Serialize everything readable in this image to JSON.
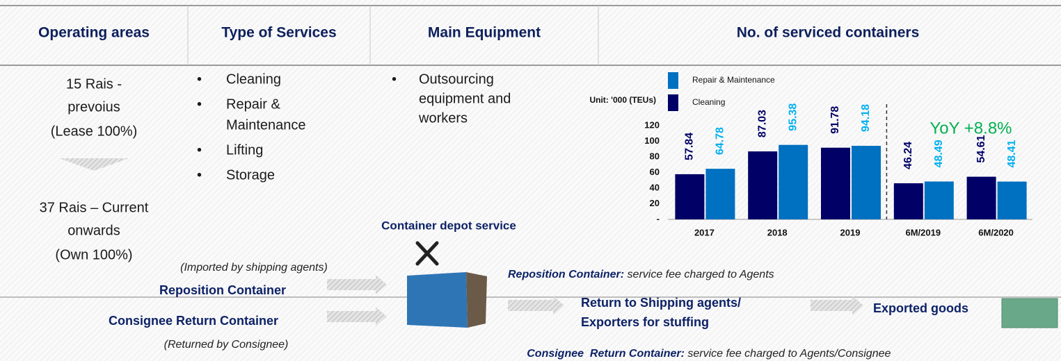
{
  "headers": [
    "Operating areas",
    "Type of Services",
    "Main Equipment",
    "No. of serviced containers"
  ],
  "operating_areas": {
    "previous": [
      "15 Rais -",
      "prevoius",
      "(Lease 100%)"
    ],
    "current": [
      "37 Rais – Current",
      "onwards",
      "(Own 100%)"
    ]
  },
  "services": [
    [
      "Cleaning"
    ],
    [
      "Repair &",
      "Maintenance"
    ],
    [
      "Lifting"
    ],
    [
      "Storage"
    ]
  ],
  "equipment": [
    [
      "Outsourcing",
      "equipment and",
      "workers"
    ]
  ],
  "chart_data": {
    "type": "bar",
    "unit_label": "Unit: '000 (TEUs)",
    "annotation": "YoY +8.8%",
    "categories": [
      "2017",
      "2018",
      "2019",
      "6M/2019",
      "6M/2020"
    ],
    "series": [
      {
        "name": "Cleaning",
        "color": "#000066",
        "label_color": "#000066",
        "values": [
          57.84,
          87.03,
          91.78,
          46.24,
          54.61
        ]
      },
      {
        "name": "Repair & Maintenance",
        "color": "#0070c0",
        "label_color": "#00b0f0",
        "values": [
          64.78,
          95.38,
          94.18,
          48.49,
          48.41
        ]
      }
    ],
    "ylim": [
      0,
      120
    ],
    "yticks": [
      {
        "value": 0,
        "label": "-"
      },
      20,
      40,
      60,
      80,
      100,
      120
    ]
  },
  "flow": {
    "depot": "Container depot service",
    "imported_note": "(Imported by shipping agents)",
    "reposition": "Reposition Container",
    "consignee_return": "Consignee Return Container",
    "returned_note": "(Returned by Consignee)",
    "reposition_fee": {
      "label": "Reposition Container:",
      "text": " service fee charged to Agents"
    },
    "return_to": [
      "Return to Shipping agents/",
      "Exporters for stuffing"
    ],
    "exported": "Exported goods",
    "consignee_fee": {
      "label": "Consignee  Return Container:",
      "text": " service fee charged to Agents/Consignee"
    }
  }
}
